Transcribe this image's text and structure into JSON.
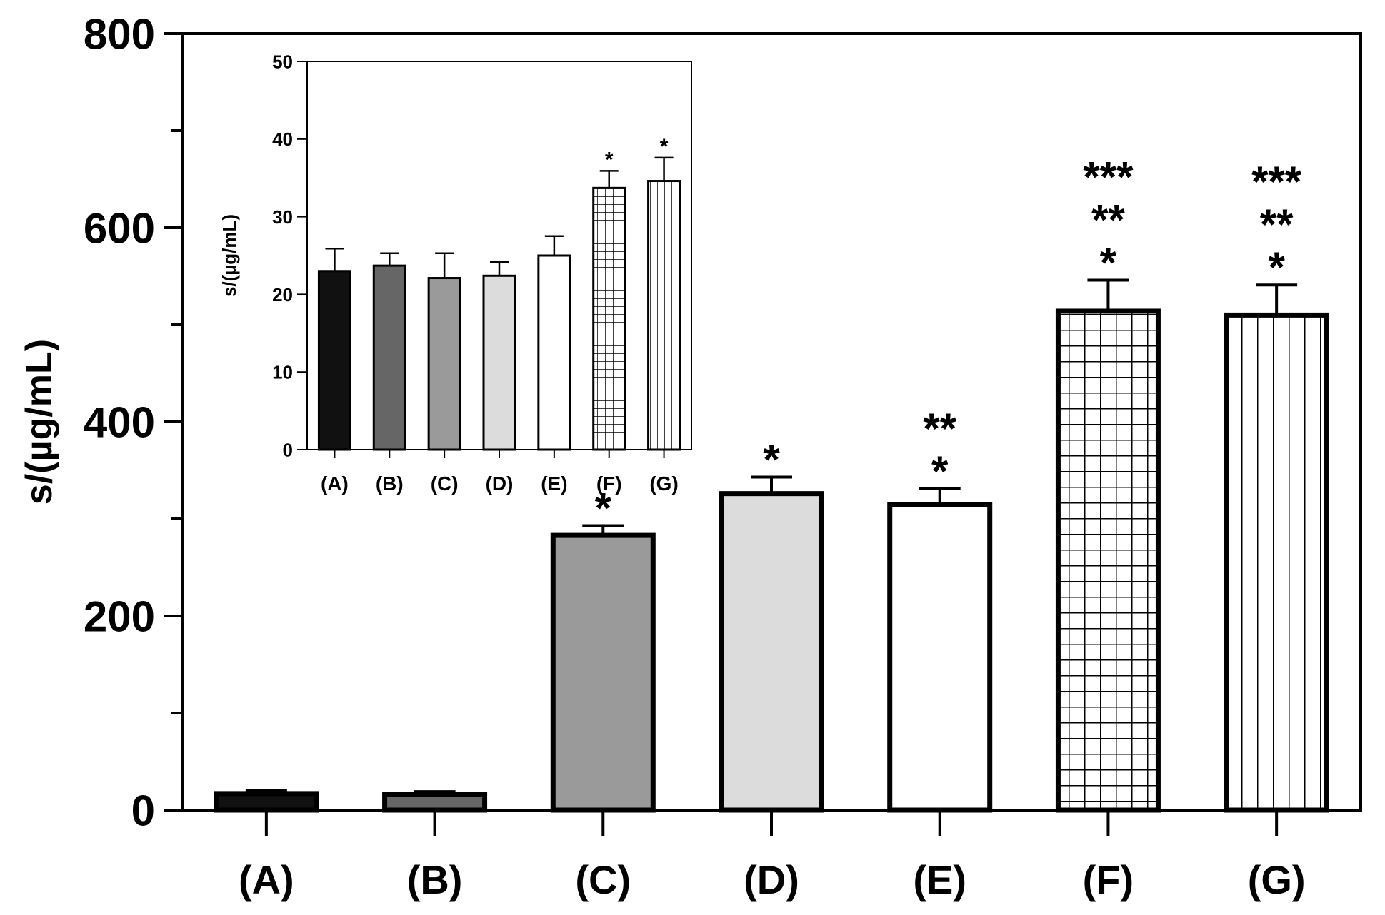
{
  "chart_data": [
    {
      "name": "main",
      "type": "bar",
      "title": "",
      "xlabel": "",
      "ylabel": "s/(µg/mL)",
      "ylim": [
        0,
        800
      ],
      "yticks_major": [
        0,
        200,
        400,
        600,
        800
      ],
      "yticks_minor": [
        100,
        300,
        500,
        700
      ],
      "categories": [
        "(A)",
        "(B)",
        "(C)",
        "(D)",
        "(E)",
        "(F)",
        "(G)"
      ],
      "values": [
        17,
        16,
        283,
        326,
        315,
        514,
        510
      ],
      "errors": [
        3,
        3,
        10,
        17,
        16,
        32,
        31
      ],
      "fills": [
        {
          "pattern": "solid",
          "color": "#111111"
        },
        {
          "pattern": "solid",
          "color": "#666666"
        },
        {
          "pattern": "solid",
          "color": "#9a9a9a"
        },
        {
          "pattern": "solid",
          "color": "#dcdcdc"
        },
        {
          "pattern": "solid",
          "color": "#ffffff"
        },
        {
          "pattern": "grid",
          "color": "#ffffff"
        },
        {
          "pattern": "vlines",
          "color": "#ffffff"
        }
      ],
      "significance": [
        [],
        [],
        [
          "*"
        ],
        [
          "*"
        ],
        [
          "**",
          "*"
        ],
        [
          "***",
          "**",
          "*"
        ],
        [
          "***",
          "**",
          "*"
        ]
      ]
    },
    {
      "name": "inset",
      "type": "bar",
      "title": "",
      "xlabel": "",
      "ylabel": "s/(µg/mL)",
      "ylim": [
        0,
        50
      ],
      "yticks_major": [
        0,
        10,
        20,
        30,
        40,
        50
      ],
      "categories": [
        "(A)",
        "(B)",
        "(C)",
        "(D)",
        "(E)",
        "(F)",
        "(G)"
      ],
      "values": [
        23,
        23.7,
        22.1,
        22.4,
        25,
        33.7,
        34.6
      ],
      "errors": [
        2.9,
        1.6,
        3.2,
        1.8,
        2.5,
        2.2,
        3
      ],
      "fills": [
        {
          "pattern": "solid",
          "color": "#111111"
        },
        {
          "pattern": "solid",
          "color": "#666666"
        },
        {
          "pattern": "solid",
          "color": "#9a9a9a"
        },
        {
          "pattern": "solid",
          "color": "#dcdcdc"
        },
        {
          "pattern": "solid",
          "color": "#ffffff"
        },
        {
          "pattern": "grid",
          "color": "#ffffff"
        },
        {
          "pattern": "vlines",
          "color": "#ffffff"
        }
      ],
      "significance": [
        [],
        [],
        [],
        [],
        [],
        [
          "*"
        ],
        [
          "*"
        ]
      ]
    }
  ]
}
